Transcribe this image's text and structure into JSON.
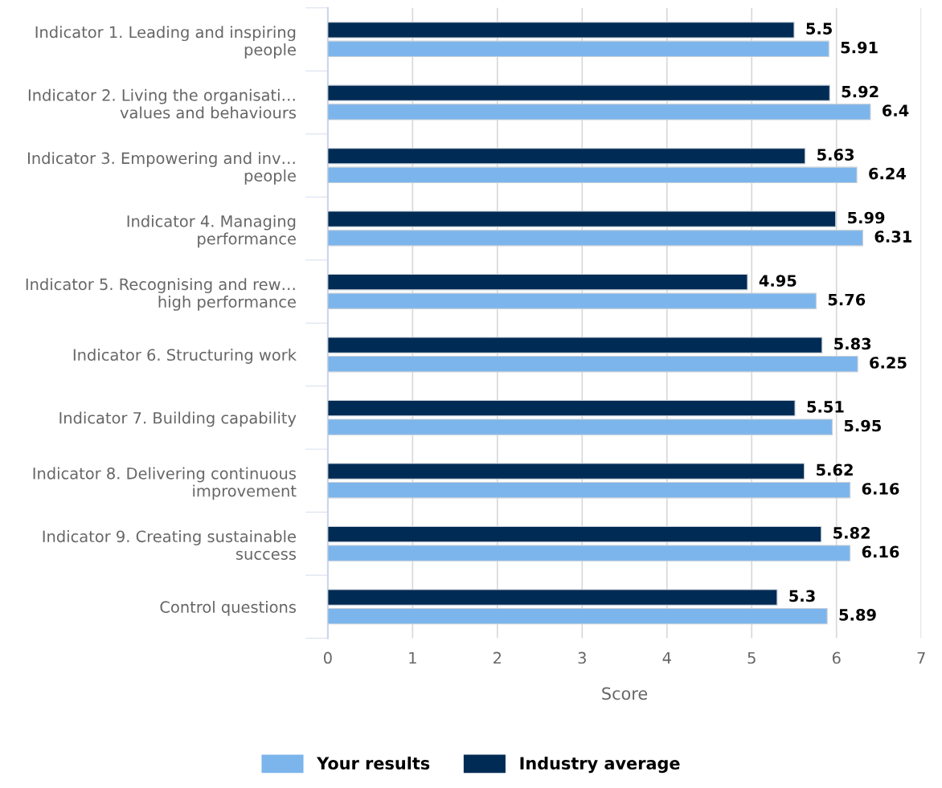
{
  "chart_data": {
    "type": "bar",
    "orientation": "horizontal",
    "xlabel": "Score",
    "categories": [
      "Indicator 1. Leading and inspiring\npeople",
      "Indicator 2. Living the organisati…\nvalues and behaviours",
      "Indicator 3. Empowering and inv…\npeople",
      "Indicator 4. Managing\nperformance",
      "Indicator 5. Recognising and rew…\nhigh performance",
      "Indicator 6. Structuring work",
      "Indicator 7. Building capability",
      "Indicator 8. Delivering continuous\nimprovement",
      "Indicator 9. Creating sustainable\nsuccess",
      "Control questions"
    ],
    "series": [
      {
        "name": "Your results",
        "color": "#7cb5ec",
        "values": [
          5.91,
          6.4,
          6.24,
          6.31,
          5.76,
          6.25,
          5.95,
          6.16,
          6.16,
          5.89
        ]
      },
      {
        "name": "Industry average",
        "color": "#002b54",
        "values": [
          5.5,
          5.92,
          5.63,
          5.99,
          4.95,
          5.83,
          5.51,
          5.62,
          5.82,
          5.3
        ]
      }
    ],
    "xlim": [
      0,
      7
    ],
    "xticks": [
      0,
      1,
      2,
      3,
      4,
      5,
      6,
      7
    ],
    "grid": "x",
    "legend": "bottom",
    "data_labels": true
  }
}
